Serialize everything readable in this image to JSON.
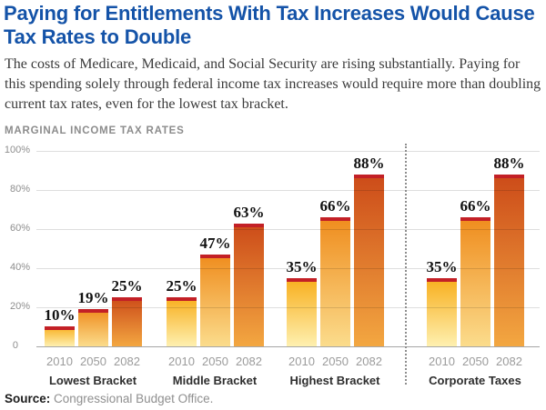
{
  "title": "Paying for Entitlements With Tax Increases Would Cause Tax Rates to Double",
  "subtitle": "The costs of Medicare, Medicaid, and Social Security are rising substantially. Paying for this spending solely through federal income tax increases would require more than doubling current tax rates, even for the lowest tax bracket.",
  "chart_header": "MARGINAL INCOME TAX RATES",
  "source": {
    "label": "Source:",
    "text": "Congressional Budget Office."
  },
  "colors": {
    "title_blue": "#1453A8",
    "subtitle_text": "#3B3B3B",
    "header_gray": "#8C8C8C",
    "bar_cap_red": "#C32026",
    "baseline_gray": "#A6A6A6",
    "separator_gray": "#8F8F8F",
    "value_label_black": "#111111",
    "year_label_gray": "#9B9B9B",
    "group_label_dark": "#2E2E2E"
  },
  "chart_data": {
    "type": "bar",
    "title": "MARGINAL INCOME TAX RATES",
    "categories": [
      "2010",
      "2050",
      "2082"
    ],
    "groups": [
      {
        "label": "Lowest Bracket",
        "values": [
          10,
          19,
          25
        ]
      },
      {
        "label": "Middle Bracket",
        "values": [
          25,
          47,
          63
        ]
      },
      {
        "label": "Highest Bracket",
        "values": [
          35,
          66,
          88
        ]
      },
      {
        "label": "Corporate Taxes",
        "values": [
          35,
          66,
          88
        ]
      }
    ],
    "value_label_suffix": "%",
    "y_ticks": [
      {
        "label": "100%",
        "value": 100
      },
      {
        "label": "80%",
        "value": 80
      },
      {
        "label": "60%",
        "value": 60
      },
      {
        "label": "40%",
        "value": 40
      },
      {
        "label": "20%",
        "value": 20
      },
      {
        "label": "0",
        "value": 0
      }
    ],
    "ylim": [
      0,
      100
    ],
    "grid": true,
    "legend": "none",
    "series_gradients": [
      [
        "#FEF0B0",
        "#F8AE1C"
      ],
      [
        "#FBDC8C",
        "#EF8C1D"
      ],
      [
        "#F3A741",
        "#CC4B19"
      ]
    ],
    "separator_before_group": 3
  }
}
